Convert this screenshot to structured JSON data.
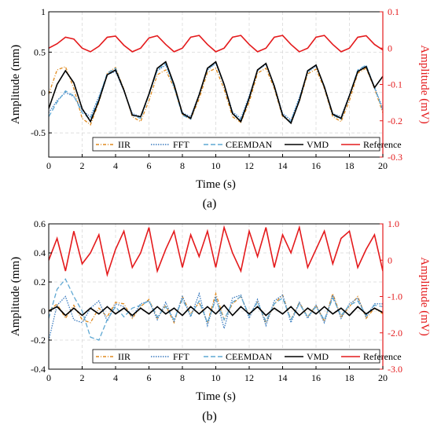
{
  "chart_data": [
    {
      "type": "line",
      "caption": "(a)",
      "xlabel": "Time (s)",
      "ylabel": "Amplitude (mm)",
      "ylabel_right": "Amplitude (mV)",
      "xlim": [
        0,
        20
      ],
      "ylim": [
        -0.8,
        1.0
      ],
      "ylim_right": [
        -0.3,
        0.1
      ],
      "x_ticks": [
        "0",
        "2",
        "4",
        "6",
        "8",
        "10",
        "12",
        "14",
        "16",
        "18",
        "20"
      ],
      "y_ticks": [
        {
          "v": 1,
          "t": "1"
        },
        {
          "v": 0.5,
          "t": "0.5"
        },
        {
          "v": 0,
          "t": "0"
        },
        {
          "v": -0.5,
          "t": "-0.5"
        }
      ],
      "y_ticks_right": [
        {
          "v": 0.1,
          "t": "0.1"
        },
        {
          "v": 0,
          "t": "0"
        },
        {
          "v": -0.1,
          "t": "-0.1"
        },
        {
          "v": -0.2,
          "t": "-0.2"
        },
        {
          "v": -0.3,
          "t": "-0.3"
        }
      ],
      "grid": true,
      "legend_position": "bottom",
      "series": [
        {
          "name": "IIR",
          "color": "#e08a1e",
          "dash": "4,2,1,2",
          "x": [
            0,
            0.5,
            1,
            1.5,
            2,
            2.5,
            3,
            3.5,
            4,
            4.5,
            5,
            5.5,
            6,
            6.5,
            7,
            7.5,
            8,
            8.5,
            9,
            9.5,
            10,
            10.5,
            11,
            11.5,
            12,
            12.5,
            13,
            13.5,
            14,
            14.5,
            15,
            15.5,
            16,
            16.5,
            17,
            17.5,
            18,
            18.5,
            19,
            19.5,
            20
          ],
          "y": [
            -0.02,
            0.28,
            0.32,
            0.05,
            -0.32,
            -0.4,
            -0.12,
            0.24,
            0.31,
            0.04,
            -0.3,
            -0.36,
            -0.1,
            0.22,
            0.28,
            0.06,
            -0.27,
            -0.33,
            -0.08,
            0.25,
            0.3,
            0.04,
            -0.3,
            -0.37,
            -0.12,
            0.24,
            0.3,
            0.05,
            -0.3,
            -0.36,
            -0.11,
            0.23,
            0.29,
            0.05,
            -0.3,
            -0.36,
            -0.1,
            0.24,
            0.3,
            0.05,
            -0.25
          ]
        },
        {
          "name": "FFT",
          "color": "#3b7bbf",
          "dash": "1.5,1.5",
          "x": [
            0,
            0.5,
            1,
            1.5,
            2,
            2.5,
            3,
            3.5,
            4,
            4.5,
            5,
            5.5,
            6,
            6.5,
            7,
            7.5,
            8,
            8.5,
            9,
            9.5,
            10,
            10.5,
            11,
            11.5,
            12,
            12.5,
            13,
            13.5,
            14,
            14.5,
            15,
            15.5,
            16,
            16.5,
            17,
            17.5,
            18,
            18.5,
            19,
            19.5,
            20
          ],
          "y": [
            -0.25,
            -0.1,
            0.0,
            -0.05,
            -0.22,
            -0.3,
            -0.05,
            0.22,
            0.26,
            0.02,
            -0.26,
            -0.3,
            -0.02,
            0.27,
            0.34,
            0.08,
            -0.25,
            -0.3,
            -0.02,
            0.28,
            0.36,
            0.1,
            -0.24,
            -0.32,
            -0.04,
            0.27,
            0.35,
            0.09,
            -0.26,
            -0.34,
            -0.06,
            0.25,
            0.33,
            0.08,
            -0.26,
            -0.3,
            -0.03,
            0.27,
            0.33,
            0.07,
            -0.2
          ]
        },
        {
          "name": "CEEMDAN",
          "color": "#5fa8d3",
          "dash": "6,3",
          "x": [
            0,
            0.5,
            1,
            1.5,
            2,
            2.5,
            3,
            3.5,
            4,
            4.5,
            5,
            5.5,
            6,
            6.5,
            7,
            7.5,
            8,
            8.5,
            9,
            9.5,
            10,
            10.5,
            11,
            11.5,
            12,
            12.5,
            13,
            13.5,
            14,
            14.5,
            15,
            15.5,
            16,
            16.5,
            17,
            17.5,
            18,
            18.5,
            19,
            19.5,
            20
          ],
          "y": [
            -0.3,
            -0.12,
            0.02,
            -0.04,
            -0.25,
            -0.33,
            -0.07,
            0.24,
            0.3,
            0.03,
            -0.28,
            -0.32,
            -0.03,
            0.28,
            0.36,
            0.07,
            -0.28,
            -0.33,
            -0.03,
            0.29,
            0.37,
            0.09,
            -0.26,
            -0.34,
            -0.06,
            0.28,
            0.36,
            0.08,
            -0.28,
            -0.36,
            -0.08,
            0.26,
            0.34,
            0.07,
            -0.28,
            -0.33,
            -0.04,
            0.28,
            0.34,
            0.06,
            -0.22
          ]
        },
        {
          "name": "VMD",
          "color": "#000000",
          "dash": "",
          "x": [
            0,
            0.5,
            1,
            1.5,
            2,
            2.5,
            3,
            3.5,
            4,
            4.5,
            5,
            5.5,
            6,
            6.5,
            7,
            7.5,
            8,
            8.5,
            9,
            9.5,
            10,
            10.5,
            11,
            11.5,
            12,
            12.5,
            13,
            13.5,
            14,
            14.5,
            15,
            15.5,
            16,
            16.5,
            17,
            17.5,
            18,
            18.5,
            19,
            19.5,
            20
          ],
          "y": [
            -0.2,
            0.1,
            0.27,
            0.12,
            -0.2,
            -0.36,
            -0.1,
            0.22,
            0.28,
            0.03,
            -0.28,
            -0.3,
            -0.02,
            0.3,
            0.38,
            0.1,
            -0.26,
            -0.32,
            -0.03,
            0.3,
            0.38,
            0.1,
            -0.26,
            -0.36,
            -0.07,
            0.28,
            0.36,
            0.08,
            -0.28,
            -0.38,
            -0.1,
            0.27,
            0.34,
            0.07,
            -0.27,
            -0.32,
            -0.04,
            0.26,
            0.32,
            0.06,
            0.2
          ]
        },
        {
          "name": "Reference",
          "color": "#e41a1c",
          "dash": "",
          "axis": "right",
          "x": [
            0,
            0.5,
            1,
            1.5,
            2,
            2.5,
            3,
            3.5,
            4,
            4.5,
            5,
            5.5,
            6,
            6.5,
            7,
            7.5,
            8,
            8.5,
            9,
            9.5,
            10,
            10.5,
            11,
            11.5,
            12,
            12.5,
            13,
            13.5,
            14,
            14.5,
            15,
            15.5,
            16,
            16.5,
            17,
            17.5,
            18,
            18.5,
            19,
            19.5,
            20
          ],
          "y": [
            0.0,
            0.012,
            0.03,
            0.025,
            0.0,
            -0.01,
            0.005,
            0.03,
            0.033,
            0.008,
            -0.01,
            0.0,
            0.028,
            0.034,
            0.01,
            -0.01,
            0.0,
            0.03,
            0.035,
            0.01,
            -0.01,
            0.0,
            0.03,
            0.035,
            0.01,
            -0.01,
            0.0,
            0.03,
            0.035,
            0.01,
            -0.01,
            0.0,
            0.03,
            0.035,
            0.01,
            -0.01,
            0.0,
            0.03,
            0.034,
            0.01,
            -0.005
          ]
        }
      ]
    },
    {
      "type": "line",
      "caption": "(b)",
      "xlabel": "Time (s)",
      "ylabel": "Amplitude (mm)",
      "ylabel_right": "Amplitude (mV)",
      "xlim": [
        0,
        20
      ],
      "ylim": [
        -0.4,
        0.6
      ],
      "ylim_right": [
        -3.0,
        1.0
      ],
      "x_ticks": [
        "0",
        "2",
        "4",
        "6",
        "8",
        "10",
        "12",
        "14",
        "16",
        "18",
        "20"
      ],
      "y_ticks": [
        {
          "v": 0.6,
          "t": "0.6"
        },
        {
          "v": 0.4,
          "t": "0.4"
        },
        {
          "v": 0.2,
          "t": "0.2"
        },
        {
          "v": 0,
          "t": "0"
        },
        {
          "v": -0.2,
          "t": "-0.2"
        },
        {
          "v": -0.4,
          "t": "-0.4"
        }
      ],
      "y_ticks_right": [
        {
          "v": 1.0,
          "t": "1.0"
        },
        {
          "v": 0,
          "t": "0"
        },
        {
          "v": -1.0,
          "t": "-1.0"
        },
        {
          "v": -2.0,
          "t": "-2.0"
        },
        {
          "v": -3.0,
          "t": "-3.0"
        }
      ],
      "grid": true,
      "legend_position": "bottom",
      "series": [
        {
          "name": "IIR",
          "color": "#e08a1e",
          "dash": "4,2,1,2",
          "x": [
            0,
            0.5,
            1,
            1.5,
            2,
            2.5,
            3,
            3.5,
            4,
            4.5,
            5,
            5.5,
            6,
            6.5,
            7,
            7.5,
            8,
            8.5,
            9,
            9.5,
            10,
            10.5,
            11,
            11.5,
            12,
            12.5,
            13,
            13.5,
            14,
            14.5,
            15,
            15.5,
            16,
            16.5,
            17,
            17.5,
            18,
            18.5,
            19,
            19.5,
            20
          ],
          "y": [
            0.0,
            0.05,
            -0.05,
            0.04,
            -0.06,
            -0.08,
            0.02,
            -0.04,
            0.06,
            0.05,
            -0.05,
            0.03,
            0.08,
            -0.05,
            0.04,
            -0.08,
            0.1,
            -0.02,
            0.06,
            -0.08,
            0.12,
            -0.06,
            0.05,
            0.1,
            -0.03,
            0.06,
            -0.08,
            0.05,
            0.11,
            -0.06,
            0.06,
            -0.04,
            0.04,
            -0.07,
            0.12,
            -0.04,
            0.03,
            0.1,
            -0.05,
            0.02,
            -0.02
          ]
        },
        {
          "name": "FFT",
          "color": "#3b7bbf",
          "dash": "1.5,1.5",
          "x": [
            0,
            0.5,
            1,
            1.5,
            2,
            2.5,
            3,
            3.5,
            4,
            4.5,
            5,
            5.5,
            6,
            6.5,
            7,
            7.5,
            8,
            8.5,
            9,
            9.5,
            10,
            10.5,
            11,
            11.5,
            12,
            12.5,
            13,
            13.5,
            14,
            14.5,
            15,
            15.5,
            16,
            16.5,
            17,
            17.5,
            18,
            18.5,
            19,
            19.5,
            20
          ],
          "y": [
            -0.2,
            0.04,
            0.1,
            -0.06,
            -0.08,
            0.02,
            0.07,
            -0.07,
            0.05,
            0.03,
            -0.04,
            0.05,
            0.07,
            -0.06,
            0.06,
            -0.07,
            0.1,
            -0.04,
            0.12,
            -0.1,
            0.1,
            -0.12,
            0.09,
            0.11,
            -0.05,
            0.08,
            -0.1,
            0.07,
            0.11,
            -0.08,
            0.06,
            -0.05,
            0.04,
            -0.08,
            0.11,
            -0.05,
            0.05,
            0.09,
            -0.04,
            0.05,
            0.05
          ]
        },
        {
          "name": "CEEMDAN",
          "color": "#5fa8d3",
          "dash": "6,3",
          "x": [
            0,
            0.5,
            1,
            1.5,
            2,
            2.5,
            3,
            3.5,
            4,
            4.5,
            5,
            5.5,
            6,
            6.5,
            7,
            7.5,
            8,
            8.5,
            9,
            9.5,
            10,
            10.5,
            11,
            11.5,
            12,
            12.5,
            13,
            13.5,
            14,
            14.5,
            15,
            15.5,
            16,
            16.5,
            17,
            17.5,
            18,
            18.5,
            19,
            19.5,
            20
          ],
          "y": [
            -0.05,
            0.15,
            0.22,
            0.1,
            0.0,
            -0.18,
            -0.2,
            -0.06,
            0.03,
            -0.04,
            0.02,
            0.04,
            0.07,
            -0.04,
            0.03,
            -0.06,
            0.08,
            -0.03,
            0.07,
            -0.08,
            0.08,
            -0.06,
            0.06,
            0.1,
            -0.03,
            0.06,
            -0.07,
            0.05,
            0.09,
            -0.06,
            0.05,
            -0.04,
            0.03,
            -0.06,
            0.09,
            -0.03,
            0.04,
            0.07,
            -0.03,
            0.04,
            0.03
          ]
        },
        {
          "name": "VMD",
          "color": "#000000",
          "dash": "",
          "x": [
            0,
            0.5,
            1,
            1.5,
            2,
            2.5,
            3,
            3.5,
            4,
            4.5,
            5,
            5.5,
            6,
            6.5,
            7,
            7.5,
            8,
            8.5,
            9,
            9.5,
            10,
            10.5,
            11,
            11.5,
            12,
            12.5,
            13,
            13.5,
            14,
            14.5,
            15,
            15.5,
            16,
            16.5,
            17,
            17.5,
            18,
            18.5,
            19,
            19.5,
            20
          ],
          "y": [
            0.0,
            0.03,
            -0.03,
            0.02,
            -0.03,
            0.02,
            -0.02,
            0.03,
            -0.02,
            0.02,
            -0.03,
            0.02,
            -0.02,
            0.03,
            -0.02,
            0.02,
            -0.03,
            0.03,
            -0.02,
            0.03,
            -0.02,
            0.04,
            -0.03,
            0.03,
            -0.02,
            0.03,
            -0.03,
            0.02,
            -0.02,
            0.03,
            -0.03,
            0.02,
            -0.02,
            0.03,
            -0.02,
            0.02,
            -0.03,
            0.03,
            -0.02,
            0.02,
            -0.01
          ]
        },
        {
          "name": "Reference",
          "color": "#e41a1c",
          "dash": "",
          "axis": "right",
          "x": [
            0,
            0.5,
            1,
            1.5,
            2,
            2.5,
            3,
            3.5,
            4,
            4.5,
            5,
            5.5,
            6,
            6.5,
            7,
            7.5,
            8,
            8.5,
            9,
            9.5,
            10,
            10.5,
            11,
            11.5,
            12,
            12.5,
            13,
            13.5,
            14,
            14.5,
            15,
            15.5,
            16,
            16.5,
            17,
            17.5,
            18,
            18.5,
            19,
            19.5,
            20
          ],
          "y": [
            0.0,
            0.6,
            -0.3,
            0.8,
            -0.1,
            0.2,
            0.7,
            -0.4,
            0.3,
            0.8,
            -0.2,
            0.2,
            0.9,
            -0.3,
            0.3,
            0.8,
            -0.2,
            0.7,
            0.1,
            0.8,
            -0.2,
            0.9,
            0.2,
            -0.3,
            0.8,
            0.1,
            0.9,
            -0.2,
            0.7,
            0.2,
            0.9,
            -0.2,
            0.3,
            0.8,
            -0.1,
            0.6,
            0.8,
            -0.2,
            0.3,
            0.7,
            -0.3
          ]
        }
      ]
    }
  ]
}
